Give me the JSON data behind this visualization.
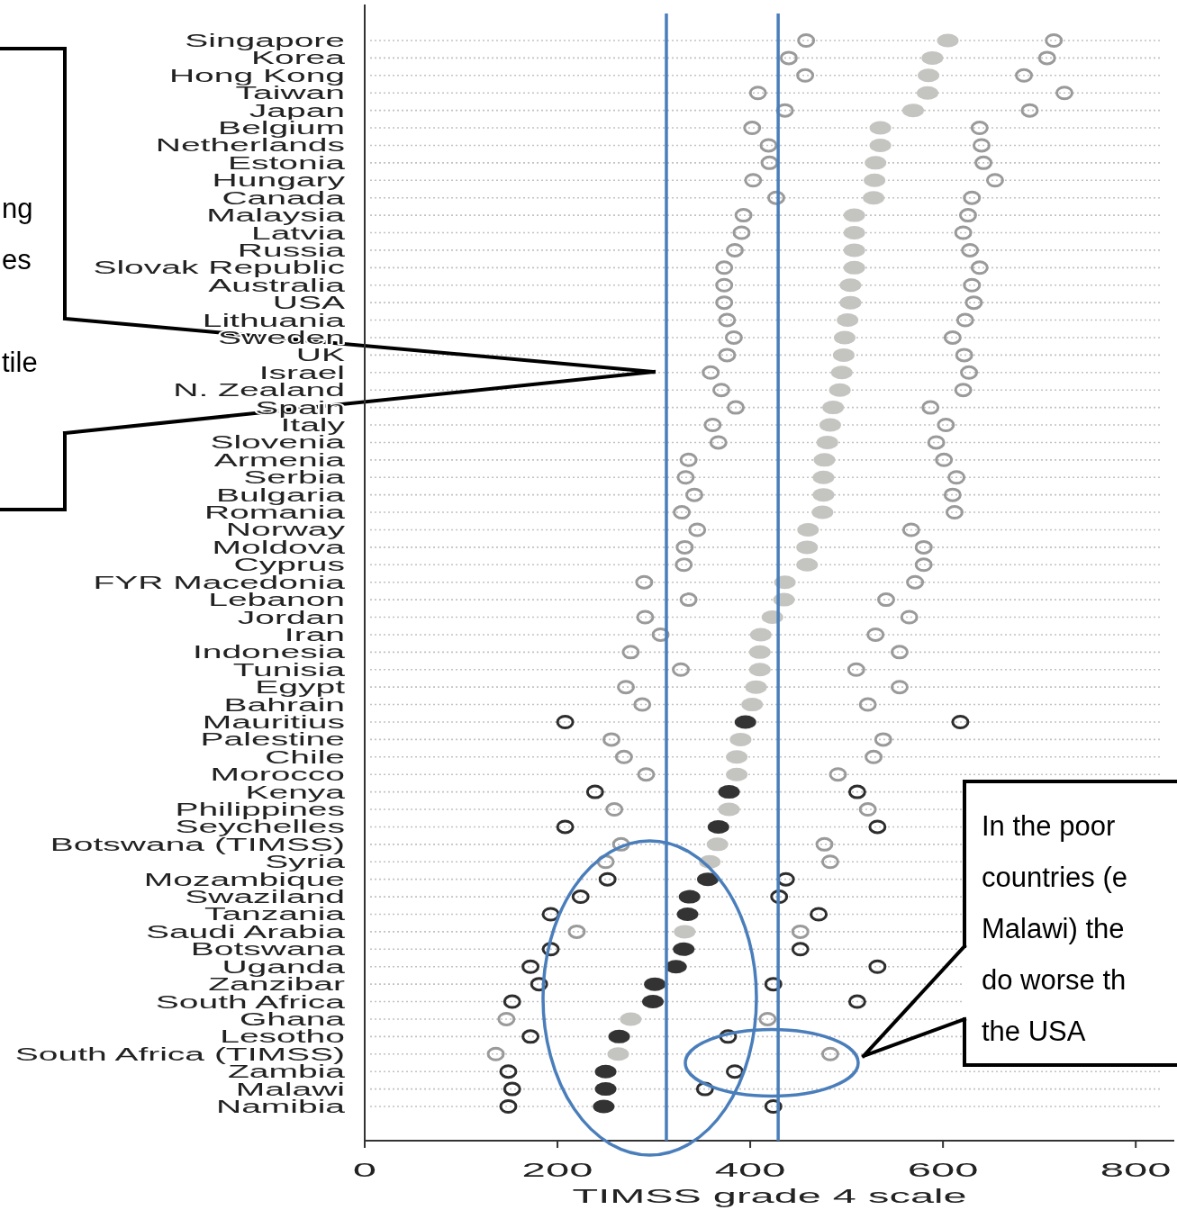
{
  "chart_data": {
    "type": "scatter",
    "orientation": "horizontal",
    "xlabel": "TIMSS grade 4 scale",
    "categories": [
      "Singapore",
      "Korea",
      "Hong Kong",
      "Taiwan",
      "Japan",
      "Belgium",
      "Netherlands",
      "Estonia",
      "Hungary",
      "Canada",
      "Malaysia",
      "Latvia",
      "Russia",
      "Slovak Republic",
      "Australia",
      "USA",
      "Lithuania",
      "Sweden",
      "UK",
      "Israel",
      "N. Zealand",
      "Spain",
      "Italy",
      "Slovenia",
      "Armenia",
      "Serbia",
      "Bulgaria",
      "Romania",
      "Norway",
      "Moldova",
      "Cyprus",
      "FYR Macedonia",
      "Lebanon",
      "Jordan",
      "Iran",
      "Indonesia",
      "Tunisia",
      "Egypt",
      "Bahrain",
      "Mauritius",
      "Palestine",
      "Chile",
      "Morocco",
      "Kenya",
      "Philippines",
      "Seychelles",
      "Botswana (TIMSS)",
      "Syria",
      "Mozambique",
      "Swaziland",
      "Tanzania",
      "Saudi Arabia",
      "Botswana",
      "Uganda",
      "Zanzibar",
      "South Africa",
      "Ghana",
      "Lesotho",
      "South Africa (TIMSS)",
      "Zambia",
      "Malawi",
      "Namibia"
    ],
    "xlim": [
      0,
      840
    ],
    "xticks": [
      0,
      200,
      400,
      600,
      800
    ],
    "grid": "y",
    "marker": "circle",
    "series": [
      {
        "values": [
          458,
          440,
          457,
          408,
          436,
          402,
          419,
          420,
          403,
          427,
          393,
          391,
          384,
          373,
          373,
          373,
          376,
          383,
          376,
          359,
          370,
          385,
          361,
          367,
          336,
          333,
          342,
          329,
          345,
          332,
          331,
          290,
          336,
          291,
          307,
          276,
          328,
          271,
          288,
          208,
          256,
          269,
          292,
          239,
          259,
          208,
          266,
          250,
          252,
          224,
          193,
          220,
          193,
          172,
          181,
          153,
          147,
          172,
          136,
          149,
          153,
          149
        ],
        "colors": [
          "#9a9a9a",
          "#9a9a9a",
          "#9a9a9a",
          "#9a9a9a",
          "#9a9a9a",
          "#9a9a9a",
          "#9a9a9a",
          "#9a9a9a",
          "#9a9a9a",
          "#9a9a9a",
          "#9a9a9a",
          "#9a9a9a",
          "#9a9a9a",
          "#9a9a9a",
          "#9a9a9a",
          "#9a9a9a",
          "#9a9a9a",
          "#9a9a9a",
          "#9a9a9a",
          "#9a9a9a",
          "#9a9a9a",
          "#9a9a9a",
          "#9a9a9a",
          "#9a9a9a",
          "#9a9a9a",
          "#9a9a9a",
          "#9a9a9a",
          "#9a9a9a",
          "#9a9a9a",
          "#9a9a9a",
          "#9a9a9a",
          "#9a9a9a",
          "#9a9a9a",
          "#9a9a9a",
          "#9a9a9a",
          "#9a9a9a",
          "#9a9a9a",
          "#9a9a9a",
          "#9a9a9a",
          "#2d2d2d",
          "#9a9a9a",
          "#9a9a9a",
          "#9a9a9a",
          "#2d2d2d",
          "#9a9a9a",
          "#2d2d2d",
          "#9a9a9a",
          "#9a9a9a",
          "#2d2d2d",
          "#2d2d2d",
          "#2d2d2d",
          "#9a9a9a",
          "#2d2d2d",
          "#2d2d2d",
          "#2d2d2d",
          "#2d2d2d",
          "#9a9a9a",
          "#2d2d2d",
          "#9a9a9a",
          "#2d2d2d",
          "#2d2d2d",
          "#2d2d2d"
        ]
      },
      {
        "values": [
          605,
          589,
          585,
          584,
          569,
          535,
          535,
          530,
          529,
          528,
          508,
          508,
          508,
          508,
          504,
          504,
          501,
          498,
          497,
          495,
          493,
          486,
          483,
          480,
          477,
          476,
          476,
          475,
          460,
          459,
          459,
          436,
          435,
          423,
          411,
          410,
          410,
          406,
          402,
          395,
          390,
          386,
          386,
          378,
          378,
          367,
          366,
          358,
          356,
          337,
          335,
          332,
          331,
          323,
          301,
          299,
          276,
          264,
          263,
          250,
          250,
          248
        ],
        "colors": [
          "#c4c4c0",
          "#c4c4c0",
          "#c4c4c0",
          "#c4c4c0",
          "#c4c4c0",
          "#c4c4c0",
          "#c4c4c0",
          "#c4c4c0",
          "#c4c4c0",
          "#c4c4c0",
          "#c4c4c0",
          "#c4c4c0",
          "#c4c4c0",
          "#c4c4c0",
          "#c4c4c0",
          "#c4c4c0",
          "#c4c4c0",
          "#c4c4c0",
          "#c4c4c0",
          "#c4c4c0",
          "#c4c4c0",
          "#c4c4c0",
          "#c4c4c0",
          "#c4c4c0",
          "#c4c4c0",
          "#c4c4c0",
          "#c4c4c0",
          "#c4c4c0",
          "#c4c4c0",
          "#c4c4c0",
          "#c4c4c0",
          "#c4c4c0",
          "#c4c4c0",
          "#c4c4c0",
          "#c4c4c0",
          "#c4c4c0",
          "#c4c4c0",
          "#c4c4c0",
          "#c4c4c0",
          "#333333",
          "#c4c4c0",
          "#c4c4c0",
          "#c4c4c0",
          "#333333",
          "#c4c4c0",
          "#333333",
          "#c4c4c0",
          "#c4c4c0",
          "#333333",
          "#333333",
          "#333333",
          "#c4c4c0",
          "#333333",
          "#333333",
          "#333333",
          "#333333",
          "#c4c4c0",
          "#333333",
          "#c4c4c0",
          "#333333",
          "#333333",
          "#333333"
        ]
      },
      {
        "values": [
          715,
          708,
          684,
          726,
          690,
          638,
          640,
          642,
          654,
          630,
          626,
          621,
          628,
          638,
          630,
          632,
          623,
          610,
          622,
          627,
          621,
          587,
          603,
          593,
          601,
          614,
          610,
          612,
          567,
          580,
          580,
          571,
          541,
          565,
          530,
          555,
          510,
          555,
          522,
          618,
          538,
          528,
          491,
          511,
          522,
          532,
          477,
          483,
          437,
          430,
          471,
          452,
          452,
          532,
          424,
          511,
          418,
          377,
          483,
          384,
          353,
          424
        ],
        "colors": [
          "#9a9a9a",
          "#9a9a9a",
          "#9a9a9a",
          "#9a9a9a",
          "#9a9a9a",
          "#9a9a9a",
          "#9a9a9a",
          "#9a9a9a",
          "#9a9a9a",
          "#9a9a9a",
          "#9a9a9a",
          "#9a9a9a",
          "#9a9a9a",
          "#9a9a9a",
          "#9a9a9a",
          "#9a9a9a",
          "#9a9a9a",
          "#9a9a9a",
          "#9a9a9a",
          "#9a9a9a",
          "#9a9a9a",
          "#9a9a9a",
          "#9a9a9a",
          "#9a9a9a",
          "#9a9a9a",
          "#9a9a9a",
          "#9a9a9a",
          "#9a9a9a",
          "#9a9a9a",
          "#9a9a9a",
          "#9a9a9a",
          "#9a9a9a",
          "#9a9a9a",
          "#9a9a9a",
          "#9a9a9a",
          "#9a9a9a",
          "#9a9a9a",
          "#9a9a9a",
          "#9a9a9a",
          "#2d2d2d",
          "#9a9a9a",
          "#9a9a9a",
          "#9a9a9a",
          "#2d2d2d",
          "#9a9a9a",
          "#2d2d2d",
          "#9a9a9a",
          "#9a9a9a",
          "#2d2d2d",
          "#2d2d2d",
          "#2d2d2d",
          "#9a9a9a",
          "#2d2d2d",
          "#2d2d2d",
          "#2d2d2d",
          "#2d2d2d",
          "#9a9a9a",
          "#2d2d2d",
          "#9a9a9a",
          "#2d2d2d",
          "#2d2d2d",
          "#2d2d2d"
        ]
      }
    ],
    "ref_lines": [
      {
        "axis": "x",
        "value": 313,
        "color": "#4a7ebb"
      },
      {
        "axis": "x",
        "value": 429,
        "color": "#4a7ebb"
      }
    ],
    "annotations": [
      "ng\nes\n\ntile",
      "In the poor\ncountries (e\nMalawi) the\ndo worse th\nthe USA"
    ]
  }
}
